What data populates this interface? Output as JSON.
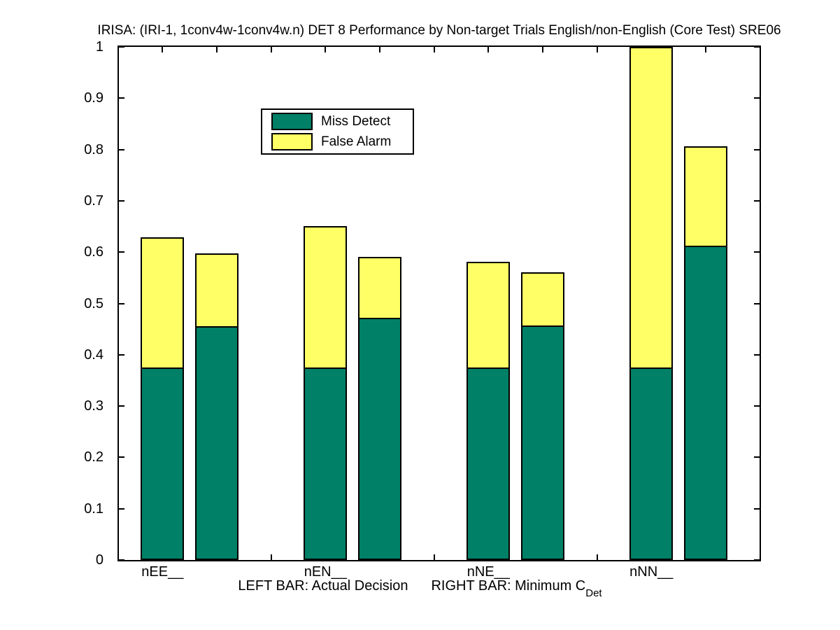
{
  "chart_data": {
    "type": "bar",
    "stacked": true,
    "title": "IRISA: (IRI-1, 1conv4w-1conv4w.n) DET 8 Performance by Non-target Trials English/non-English (Core Test) SRE06",
    "categories": [
      "nEE__",
      "nEN__",
      "nNE__",
      "nNN__"
    ],
    "legend": [
      {
        "label": "Miss Detect",
        "color": "#008066"
      },
      {
        "label": "False Alarm",
        "color": "#FFFF66"
      }
    ],
    "legend_position": "top-left-inside",
    "grid": false,
    "ylim": [
      0,
      1
    ],
    "ytick_labels": [
      "0",
      "0.1",
      "0.2",
      "0.3",
      "0.4",
      "0.5",
      "0.6",
      "0.7",
      "0.8",
      "0.9",
      "1"
    ],
    "xlabel": {
      "left_bar": "LEFT BAR: Actual Decision",
      "right_bar": "RIGHT BAR: Minimum C",
      "subscript": "Det"
    },
    "groups": [
      {
        "category": "nEE__",
        "actual_decision": {
          "miss_detect": 0.373,
          "false_alarm": 0.256,
          "total": 0.629,
          "clipped_at_top": false
        },
        "minimum_cdet": {
          "miss_detect": 0.453,
          "false_alarm": 0.144,
          "total": 0.597,
          "clipped_at_top": false
        }
      },
      {
        "category": "nEN__",
        "actual_decision": {
          "miss_detect": 0.373,
          "false_alarm": 0.278,
          "total": 0.651,
          "clipped_at_top": false
        },
        "minimum_cdet": {
          "miss_detect": 0.47,
          "false_alarm": 0.121,
          "total": 0.591,
          "clipped_at_top": false
        }
      },
      {
        "category": "nNE__",
        "actual_decision": {
          "miss_detect": 0.373,
          "false_alarm": 0.208,
          "total": 0.581,
          "clipped_at_top": false
        },
        "minimum_cdet": {
          "miss_detect": 0.454,
          "false_alarm": 0.107,
          "total": 0.561,
          "clipped_at_top": false
        }
      },
      {
        "category": "nNN__",
        "actual_decision": {
          "miss_detect": 0.373,
          "false_alarm": 0.627,
          "total": 1.0,
          "clipped_at_top": true
        },
        "minimum_cdet": {
          "miss_detect": 0.61,
          "false_alarm": 0.197,
          "total": 0.807,
          "clipped_at_top": false
        }
      }
    ],
    "colors": {
      "miss_detect": "#008066",
      "false_alarm": "#FFFF66",
      "axis": "#000000",
      "background": "#FFFFFF"
    }
  }
}
